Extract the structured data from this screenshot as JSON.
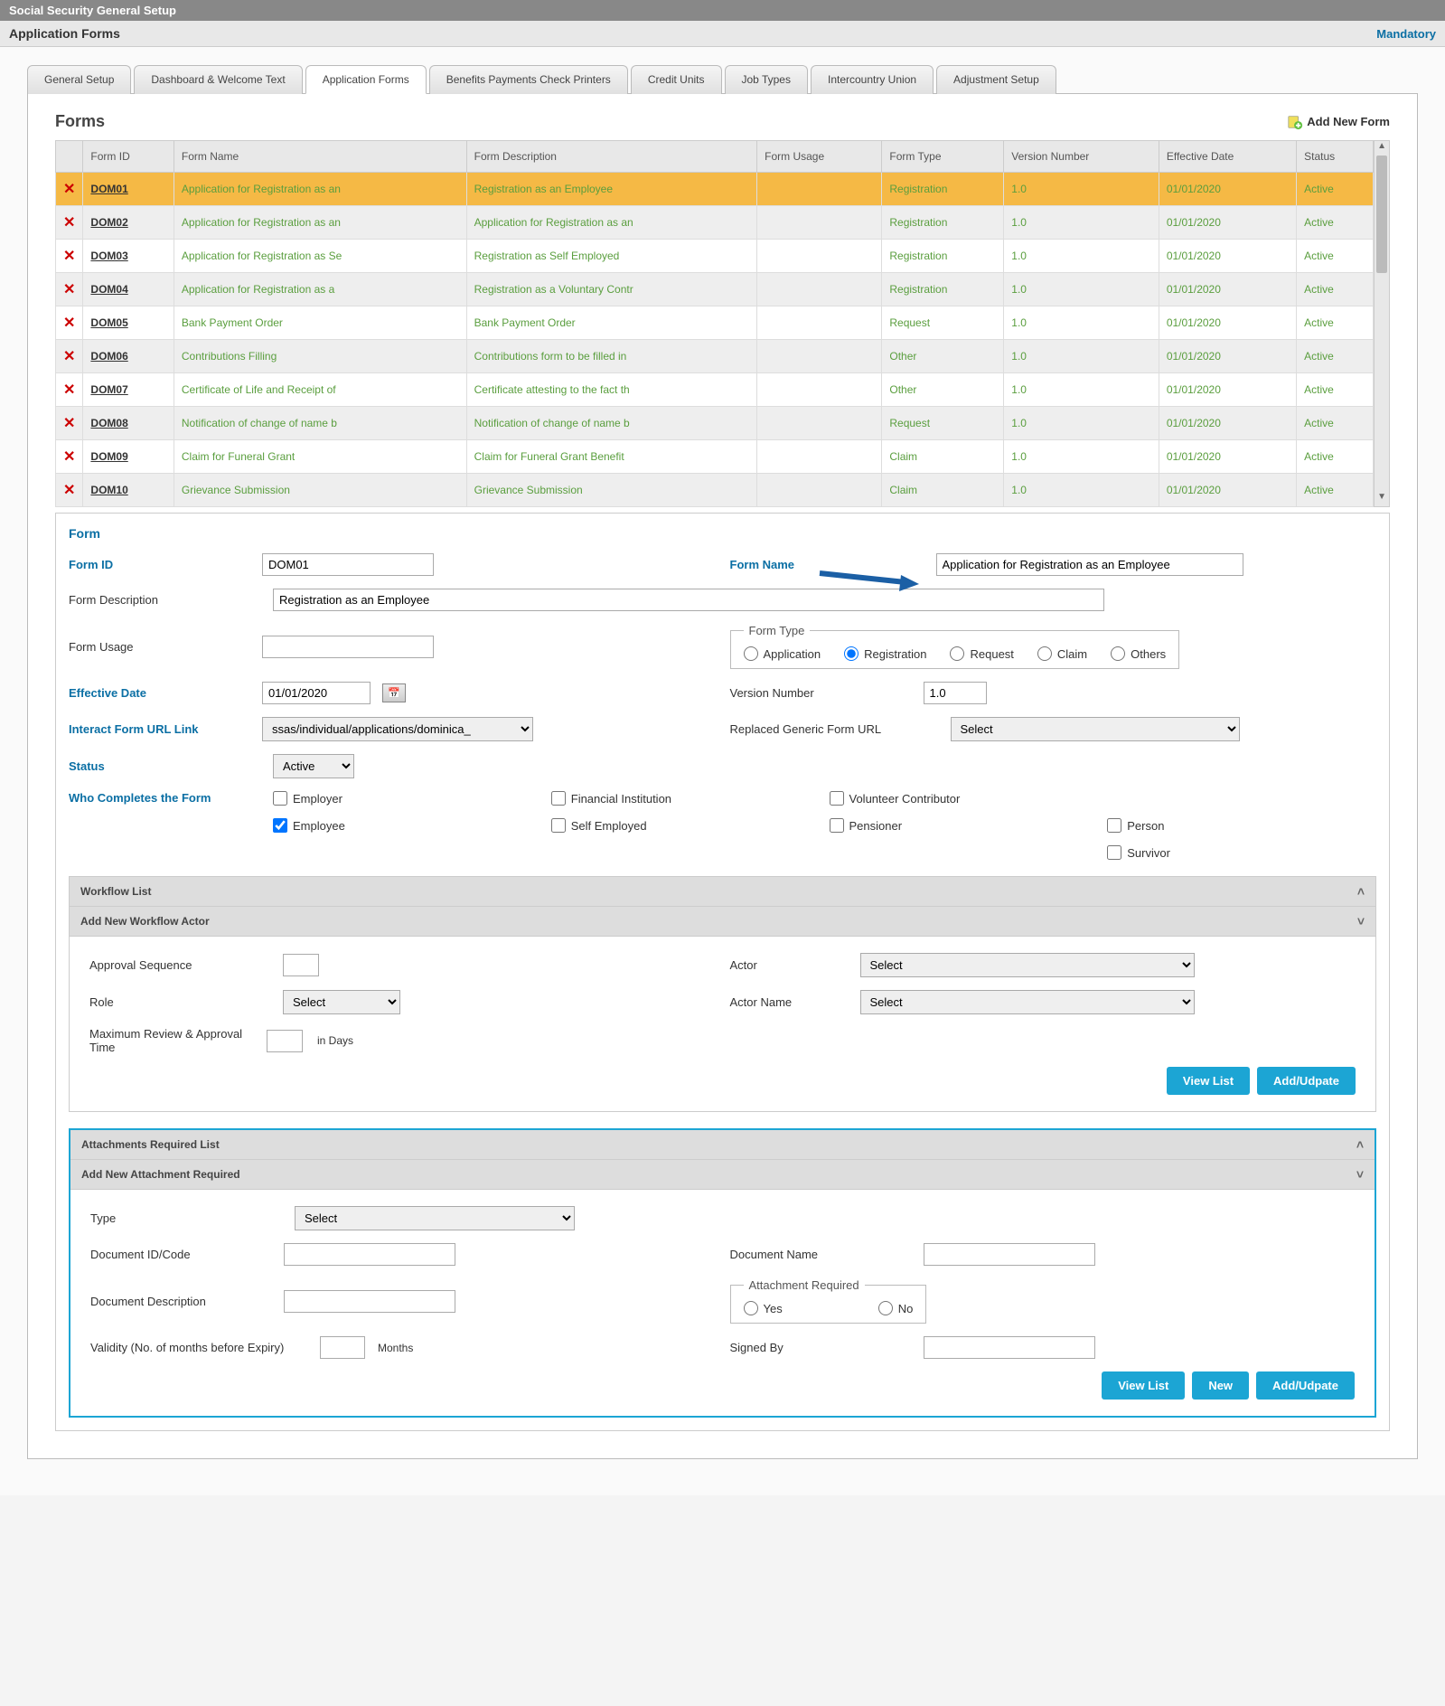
{
  "header": {
    "title": "Social Security General Setup",
    "subtitle": "Application Forms",
    "mandatory": "Mandatory"
  },
  "tabs": [
    "General Setup",
    "Dashboard & Welcome Text",
    "Application Forms",
    "Benefits Payments Check Printers",
    "Credit Units",
    "Job Types",
    "Intercountry Union",
    "Adjustment Setup"
  ],
  "active_tab": 2,
  "forms_panel": {
    "title": "Forms",
    "add_new": "Add New Form",
    "columns": [
      "Form ID",
      "Form Name",
      "Form Description",
      "Form Usage",
      "Form Type",
      "Version Number",
      "Effective Date",
      "Status"
    ],
    "rows": [
      {
        "id": "DOM01",
        "name": "Application for Registration as an",
        "desc": "Registration as an Employee",
        "usage": "",
        "type": "Registration",
        "ver": "1.0",
        "date": "01/01/2020",
        "status": "Active",
        "sel": true
      },
      {
        "id": "DOM02",
        "name": "Application for Registration as an",
        "desc": "Application for Registration as an",
        "usage": "",
        "type": "Registration",
        "ver": "1.0",
        "date": "01/01/2020",
        "status": "Active"
      },
      {
        "id": "DOM03",
        "name": "Application for Registration as Se",
        "desc": "Registration as Self Employed",
        "usage": "",
        "type": "Registration",
        "ver": "1.0",
        "date": "01/01/2020",
        "status": "Active"
      },
      {
        "id": "DOM04",
        "name": "Application for Registration as a",
        "desc": "Registration as a Voluntary Contr",
        "usage": "",
        "type": "Registration",
        "ver": "1.0",
        "date": "01/01/2020",
        "status": "Active"
      },
      {
        "id": "DOM05",
        "name": "Bank Payment Order",
        "desc": "Bank Payment Order",
        "usage": "",
        "type": "Request",
        "ver": "1.0",
        "date": "01/01/2020",
        "status": "Active"
      },
      {
        "id": "DOM06",
        "name": "Contributions Filling",
        "desc": "Contributions form to be filled in",
        "usage": "",
        "type": "Other",
        "ver": "1.0",
        "date": "01/01/2020",
        "status": "Active"
      },
      {
        "id": "DOM07",
        "name": "Certificate of Life and Receipt of",
        "desc": "Certificate attesting to the fact th",
        "usage": "",
        "type": "Other",
        "ver": "1.0",
        "date": "01/01/2020",
        "status": "Active"
      },
      {
        "id": "DOM08",
        "name": "Notification of change of name b",
        "desc": "Notification of change of name b",
        "usage": "",
        "type": "Request",
        "ver": "1.0",
        "date": "01/01/2020",
        "status": "Active"
      },
      {
        "id": "DOM09",
        "name": "Claim for Funeral Grant",
        "desc": "Claim for Funeral Grant Benefit",
        "usage": "",
        "type": "Claim",
        "ver": "1.0",
        "date": "01/01/2020",
        "status": "Active"
      },
      {
        "id": "DOM10",
        "name": "Grievance Submission",
        "desc": "Grievance Submission",
        "usage": "",
        "type": "Claim",
        "ver": "1.0",
        "date": "01/01/2020",
        "status": "Active"
      }
    ]
  },
  "detail": {
    "title": "Form",
    "form_id_label": "Form ID",
    "form_id": "DOM01",
    "form_name_label": "Form Name",
    "form_name": "Application for Registration as an Employee",
    "form_desc_label": "Form Description",
    "form_desc": "Registration as an Employee",
    "form_usage_label": "Form Usage",
    "form_usage": "",
    "form_type_label": "Form Type",
    "ft_app": "Application",
    "ft_reg": "Registration",
    "ft_req": "Request",
    "ft_claim": "Claim",
    "ft_oth": "Others",
    "eff_date_label": "Effective Date",
    "eff_date": "01/01/2020",
    "ver_label": "Version Number",
    "ver": "1.0",
    "url_label": "Interact Form URL Link",
    "url": "ssas/individual/applications/dominica_",
    "repl_label": "Replaced Generic Form URL",
    "repl": "Select",
    "status_label": "Status",
    "status": "Active",
    "who_label": "Who Completes the Form",
    "chk_employer": "Employer",
    "chk_fin": "Financial Institution",
    "chk_vol": "Volunteer Contributor",
    "chk_na": "",
    "chk_employee": "Employee",
    "chk_self": "Self Employed",
    "chk_pens": "Pensioner",
    "chk_person": "Person",
    "chk_surv": "Survivor"
  },
  "workflow": {
    "title": "Workflow List",
    "add_title": "Add New Workflow Actor",
    "seq_label": "Approval Sequence",
    "actor_label": "Actor",
    "actor": "Select",
    "role_label": "Role",
    "role": "Select",
    "actorname_label": "Actor Name",
    "actorname": "Select",
    "max_label": "Maximum Review & Approval Time",
    "days": "in Days",
    "btn_view": "View List",
    "btn_add": "Add/Udpate"
  },
  "attach": {
    "title": "Attachments Required List",
    "add_title": "Add New Attachment Required",
    "type_label": "Type",
    "type": "Select",
    "docid_label": "Document ID/Code",
    "docname_label": "Document Name",
    "docdesc_label": "Document Description",
    "attreq_label": "Attachment Required",
    "yes": "Yes",
    "no": "No",
    "valid_label": "Validity (No. of months before Expiry)",
    "months": "Months",
    "signed_label": "Signed By",
    "btn_view": "View List",
    "btn_new": "New",
    "btn_add": "Add/Udpate"
  }
}
